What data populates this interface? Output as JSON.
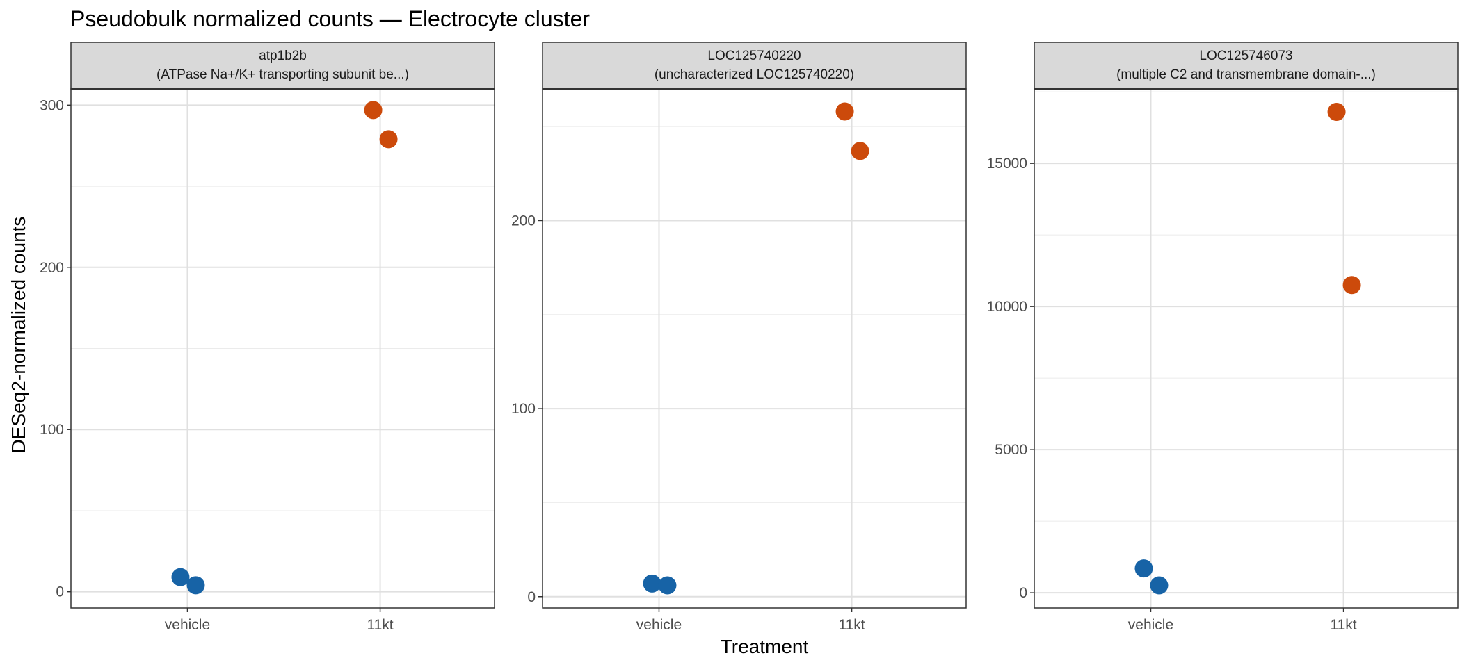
{
  "chart_data": {
    "type": "scatter",
    "title": "Pseudobulk normalized counts — Electrocyte cluster",
    "xlabel": "Treatment",
    "ylabel": "DESeq2-normalized counts",
    "categories": [
      "vehicle",
      "11kt"
    ],
    "colors": {
      "vehicle": "#1763a6",
      "11kt": "#cc4a0b"
    },
    "panel_style": {
      "strip_background": "#d9d9d9",
      "grid": true,
      "legend": "none"
    },
    "panels": [
      {
        "gene": "atp1b2b",
        "description": "(ATPase Na+/K+ transporting subunit be...)",
        "ylim": [
          -10,
          310
        ],
        "yticks": [
          0,
          100,
          200,
          300
        ],
        "points": [
          {
            "category": "vehicle",
            "y": 9
          },
          {
            "category": "vehicle",
            "y": 4
          },
          {
            "category": "11kt",
            "y": 297
          },
          {
            "category": "11kt",
            "y": 279
          }
        ]
      },
      {
        "gene": "LOC125740220",
        "description": "(uncharacterized LOC125740220)",
        "ylim": [
          -6,
          270
        ],
        "yticks": [
          0,
          100,
          200
        ],
        "points": [
          {
            "category": "vehicle",
            "y": 7
          },
          {
            "category": "vehicle",
            "y": 6
          },
          {
            "category": "11kt",
            "y": 258
          },
          {
            "category": "11kt",
            "y": 237
          }
        ]
      },
      {
        "gene": "LOC125746073",
        "description": "(multiple C2 and transmembrane domain-...)",
        "ylim": [
          -530,
          17600
        ],
        "yticks": [
          0,
          5000,
          10000,
          15000
        ],
        "points": [
          {
            "category": "vehicle",
            "y": 850
          },
          {
            "category": "vehicle",
            "y": 260
          },
          {
            "category": "11kt",
            "y": 16800
          },
          {
            "category": "11kt",
            "y": 10750
          }
        ]
      }
    ]
  }
}
